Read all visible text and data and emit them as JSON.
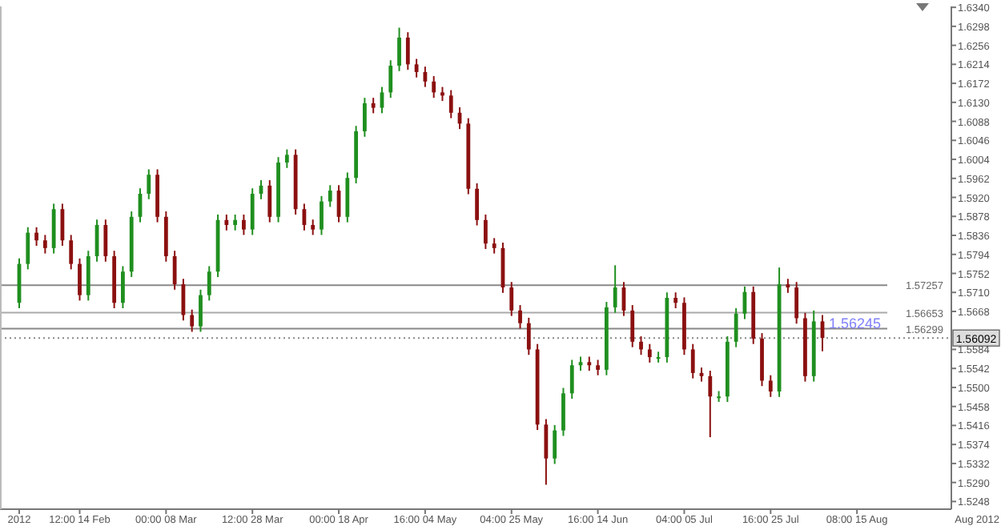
{
  "chart_data": {
    "type": "candlestick",
    "categories": [
      "2012",
      null,
      null,
      null,
      null,
      null,
      null,
      "12:00 14 Feb",
      null,
      null,
      null,
      null,
      null,
      null,
      null,
      null,
      null,
      "00:00 08 Mar",
      null,
      null,
      null,
      null,
      null,
      null,
      null,
      null,
      null,
      "12:00 28 Mar",
      null,
      null,
      null,
      null,
      null,
      null,
      null,
      null,
      null,
      "00:00 18 Apr",
      null,
      null,
      null,
      null,
      null,
      null,
      null,
      null,
      null,
      "16:00 04 May",
      null,
      null,
      null,
      null,
      null,
      null,
      null,
      null,
      null,
      "04:00 25 May",
      null,
      null,
      null,
      null,
      null,
      null,
      null,
      null,
      null,
      "16:00 14 Jun",
      null,
      null,
      null,
      null,
      null,
      null,
      null,
      null,
      null,
      "04:00 05 Jul",
      null,
      null,
      null,
      null,
      null,
      null,
      null,
      null,
      null,
      "16:00 25 Jul",
      null,
      null,
      null,
      null,
      null,
      null,
      null,
      null,
      null,
      "08:00 15 Aug",
      null,
      null,
      null,
      null,
      null,
      null,
      null,
      null,
      null,
      null
    ],
    "ohlc": [
      [
        1.5687,
        1.5785,
        1.5675,
        1.5773
      ],
      [
        1.5773,
        1.5854,
        1.5761,
        1.5842
      ],
      [
        1.5842,
        1.5854,
        1.5813,
        1.5825
      ],
      [
        1.5825,
        1.5837,
        1.5796,
        1.5808
      ],
      [
        1.5808,
        1.5906,
        1.5796,
        1.5894
      ],
      [
        1.5894,
        1.5906,
        1.5813,
        1.5825
      ],
      [
        1.5825,
        1.5837,
        1.5761,
        1.5773
      ],
      [
        1.5773,
        1.5785,
        1.5692,
        1.5704
      ],
      [
        1.5704,
        1.5802,
        1.5692,
        1.579
      ],
      [
        1.579,
        1.5871,
        1.5778,
        1.5859
      ],
      [
        1.5859,
        1.5871,
        1.5778,
        1.579
      ],
      [
        1.579,
        1.5802,
        1.5675,
        1.5687
      ],
      [
        1.5687,
        1.5768,
        1.5675,
        1.5756
      ],
      [
        1.5756,
        1.5889,
        1.5744,
        1.5877
      ],
      [
        1.5877,
        1.594,
        1.5865,
        1.5928
      ],
      [
        1.5928,
        1.5982,
        1.5916,
        1.597
      ],
      [
        1.597,
        1.5982,
        1.5865,
        1.5877
      ],
      [
        1.5877,
        1.5889,
        1.5778,
        1.579
      ],
      [
        1.579,
        1.5802,
        1.5716,
        1.5728
      ],
      [
        1.5728,
        1.574,
        1.5648,
        1.566
      ],
      [
        1.566,
        1.5672,
        1.5623,
        1.5635
      ],
      [
        1.5635,
        1.5716,
        1.5623,
        1.5704
      ],
      [
        1.5704,
        1.5768,
        1.5692,
        1.5756
      ],
      [
        1.5756,
        1.5882,
        1.5744,
        1.587
      ],
      [
        1.587,
        1.5882,
        1.5847,
        1.5859
      ],
      [
        1.5859,
        1.5882,
        1.5847,
        1.587
      ],
      [
        1.587,
        1.5882,
        1.5837,
        1.5849
      ],
      [
        1.5849,
        1.594,
        1.5837,
        1.5928
      ],
      [
        1.5928,
        1.5958,
        1.5916,
        1.5946
      ],
      [
        1.5946,
        1.5958,
        1.5865,
        1.5877
      ],
      [
        1.5877,
        1.6009,
        1.5865,
        1.5997
      ],
      [
        1.5997,
        1.6026,
        1.5985,
        1.6014
      ],
      [
        1.6014,
        1.6026,
        1.5882,
        1.5894
      ],
      [
        1.5894,
        1.5906,
        1.5847,
        1.5859
      ],
      [
        1.5859,
        1.5871,
        1.5837,
        1.5849
      ],
      [
        1.5849,
        1.5923,
        1.5837,
        1.5911
      ],
      [
        1.5911,
        1.5947,
        1.5899,
        1.5935
      ],
      [
        1.5935,
        1.5947,
        1.5865,
        1.5877
      ],
      [
        1.5877,
        1.5975,
        1.5865,
        1.5963
      ],
      [
        1.5963,
        1.6078,
        1.5951,
        1.6066
      ],
      [
        1.6066,
        1.614,
        1.6054,
        1.6128
      ],
      [
        1.6128,
        1.614,
        1.6106,
        1.6118
      ],
      [
        1.6118,
        1.6164,
        1.6106,
        1.6152
      ],
      [
        1.6152,
        1.6223,
        1.614,
        1.6211
      ],
      [
        1.6211,
        1.6295,
        1.6199,
        1.6273
      ],
      [
        1.6273,
        1.6285,
        1.6202,
        1.6214
      ],
      [
        1.6214,
        1.6226,
        1.6185,
        1.6197
      ],
      [
        1.6197,
        1.6209,
        1.6164,
        1.6176
      ],
      [
        1.6176,
        1.6188,
        1.614,
        1.6152
      ],
      [
        1.6152,
        1.6164,
        1.6133,
        1.6145
      ],
      [
        1.6145,
        1.6157,
        1.6095,
        1.6107
      ],
      [
        1.6107,
        1.6119,
        1.6071,
        1.6083
      ],
      [
        1.6083,
        1.6095,
        1.5927,
        1.5939
      ],
      [
        1.5939,
        1.5951,
        1.5858,
        1.587
      ],
      [
        1.587,
        1.5882,
        1.5806,
        1.5818
      ],
      [
        1.5818,
        1.583,
        1.5796,
        1.5808
      ],
      [
        1.5808,
        1.582,
        1.5709,
        1.5721
      ],
      [
        1.5721,
        1.5733,
        1.5658,
        1.567
      ],
      [
        1.567,
        1.5682,
        1.563,
        1.5642
      ],
      [
        1.5642,
        1.5654,
        1.5572,
        1.5584
      ],
      [
        1.5584,
        1.5596,
        1.5406,
        1.5418
      ],
      [
        1.5418,
        1.543,
        1.5285,
        1.5343
      ],
      [
        1.5343,
        1.5417,
        1.5331,
        1.5405
      ],
      [
        1.5405,
        1.5499,
        1.5393,
        1.5487
      ],
      [
        1.5487,
        1.5561,
        1.5475,
        1.5549
      ],
      [
        1.5549,
        1.5568,
        1.5537,
        1.5556
      ],
      [
        1.5556,
        1.5568,
        1.5537,
        1.5549
      ],
      [
        1.5549,
        1.5561,
        1.5527,
        1.5539
      ],
      [
        1.5539,
        1.5689,
        1.5527,
        1.5677
      ],
      [
        1.5677,
        1.577,
        1.5665,
        1.5721
      ],
      [
        1.5721,
        1.5733,
        1.5658,
        1.567
      ],
      [
        1.567,
        1.5682,
        1.5589,
        1.5601
      ],
      [
        1.5601,
        1.5613,
        1.5572,
        1.5584
      ],
      [
        1.5584,
        1.5596,
        1.5555,
        1.5567
      ],
      [
        1.5567,
        1.5579,
        1.5555,
        1.5567
      ],
      [
        1.5567,
        1.571,
        1.5555,
        1.5698
      ],
      [
        1.5698,
        1.571,
        1.5675,
        1.5687
      ],
      [
        1.5687,
        1.5699,
        1.5572,
        1.5584
      ],
      [
        1.5584,
        1.5596,
        1.552,
        1.5532
      ],
      [
        1.5532,
        1.5544,
        1.5513,
        1.5525
      ],
      [
        1.5525,
        1.5537,
        1.539,
        1.548
      ],
      [
        1.548,
        1.5492,
        1.5468,
        1.548
      ],
      [
        1.548,
        1.5613,
        1.5468,
        1.5601
      ],
      [
        1.5601,
        1.5675,
        1.5589,
        1.5663
      ],
      [
        1.5663,
        1.5723,
        1.5651,
        1.5711
      ],
      [
        1.5711,
        1.5723,
        1.5596,
        1.5608
      ],
      [
        1.5608,
        1.562,
        1.5503,
        1.5515
      ],
      [
        1.5515,
        1.5527,
        1.5479,
        1.5491
      ],
      [
        1.5491,
        1.5765,
        1.5479,
        1.5728
      ],
      [
        1.5728,
        1.574,
        1.5709,
        1.5721
      ],
      [
        1.5721,
        1.5733,
        1.5641,
        1.5653
      ],
      [
        1.5653,
        1.5665,
        1.5513,
        1.5525
      ],
      [
        1.5525,
        1.567,
        1.5513,
        1.5646
      ],
      [
        1.5646,
        1.566,
        1.558,
        1.56092
      ],
      null,
      null,
      null,
      null,
      null,
      null,
      null,
      null,
      null,
      null,
      null,
      null,
      null,
      null
    ],
    "ylim": [
      1.5231,
      1.6342
    ],
    "yticks": [
      1.5248,
      {
        "value": 1.529,
        "label": "1.5290"
      },
      1.5332,
      1.5374,
      1.5416,
      1.5458,
      {
        "value": 1.55,
        "label": "1.5500"
      },
      1.5542,
      1.5584,
      1.5668,
      {
        "value": 1.571,
        "label": "1.5710"
      },
      1.5752,
      1.5794,
      1.5836,
      1.5878,
      {
        "value": 1.592,
        "label": "1.5920"
      },
      1.5962,
      1.6004,
      1.6046,
      1.6088,
      {
        "value": 1.613,
        "label": "1.6130"
      },
      1.6172,
      1.6214,
      1.6256,
      1.6298,
      {
        "value": 1.634,
        "label": "1.6340"
      }
    ],
    "ref_lines": [
      {
        "axis": "y",
        "value": 1.57257,
        "label": "1.57257",
        "color": "#888888",
        "line_style": "solid"
      },
      {
        "axis": "y",
        "value": 1.56653,
        "label": "1.56653",
        "color": "#aaaaaa",
        "line_style": "solid"
      },
      {
        "axis": "y",
        "value": 1.56299,
        "label": "1.56299",
        "color": "#888888",
        "line_style": "solid"
      },
      {
        "axis": "y",
        "value": 1.56092,
        "label": "1.56092",
        "color": "#888888",
        "line_style": "dotted"
      }
    ],
    "annotations": [
      {
        "text": "1.56245",
        "y": 1.56245
      },
      "Aug 2012"
    ],
    "grid": false
  }
}
